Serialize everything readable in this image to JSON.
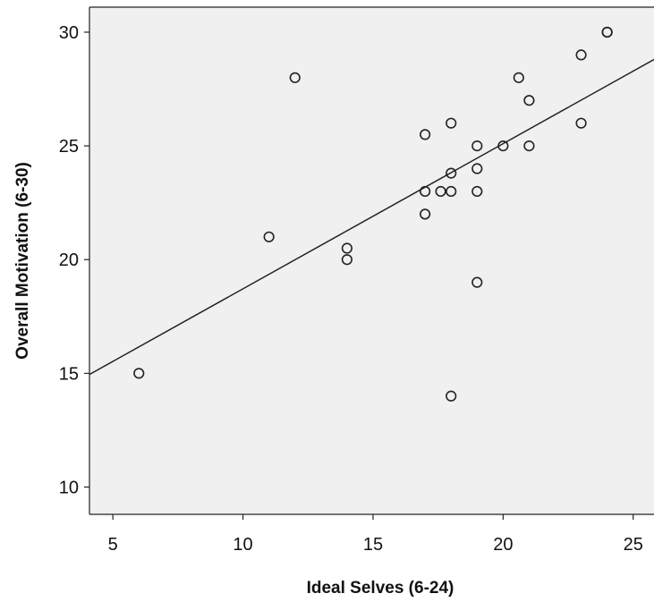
{
  "chart_data": {
    "type": "scatter",
    "title": "",
    "xlabel": "Ideal Selves (6-24)",
    "ylabel": "Overall Motivation (6-30)",
    "xlim": [
      4.1,
      25.8
    ],
    "ylim": [
      8.8,
      31.1
    ],
    "x_ticks": [
      5,
      10,
      15,
      20,
      25
    ],
    "y_ticks": [
      10,
      15,
      20,
      25,
      30
    ],
    "x_tick_labels": [
      "5",
      "10",
      "15",
      "20",
      "25"
    ],
    "y_tick_labels": [
      "10",
      "15",
      "20",
      "25",
      "30"
    ],
    "grid": false,
    "legend": "none",
    "colors": {
      "plot_background": "#f0f0f0",
      "marker": "#222222",
      "line": "#222222",
      "axis": "#222222"
    },
    "points": [
      {
        "x": 6,
        "y": 15
      },
      {
        "x": 11,
        "y": 21
      },
      {
        "x": 12,
        "y": 28
      },
      {
        "x": 14,
        "y": 20.5
      },
      {
        "x": 14,
        "y": 20
      },
      {
        "x": 17,
        "y": 25.5
      },
      {
        "x": 17,
        "y": 23
      },
      {
        "x": 17,
        "y": 22
      },
      {
        "x": 17.6,
        "y": 23
      },
      {
        "x": 18,
        "y": 26
      },
      {
        "x": 18,
        "y": 23.8
      },
      {
        "x": 18,
        "y": 23
      },
      {
        "x": 18,
        "y": 14
      },
      {
        "x": 19,
        "y": 25
      },
      {
        "x": 19,
        "y": 24
      },
      {
        "x": 19,
        "y": 23
      },
      {
        "x": 19,
        "y": 19
      },
      {
        "x": 20,
        "y": 25
      },
      {
        "x": 20.6,
        "y": 28
      },
      {
        "x": 21,
        "y": 27
      },
      {
        "x": 21,
        "y": 25
      },
      {
        "x": 23,
        "y": 29
      },
      {
        "x": 23,
        "y": 26
      },
      {
        "x": 24,
        "y": 30
      },
      {
        "x": 24,
        "y": 30
      }
    ],
    "fit_line": {
      "type": "linear",
      "start": {
        "x": 4.1,
        "y": 14.95
      },
      "end": {
        "x": 25.8,
        "y": 28.8
      }
    }
  }
}
